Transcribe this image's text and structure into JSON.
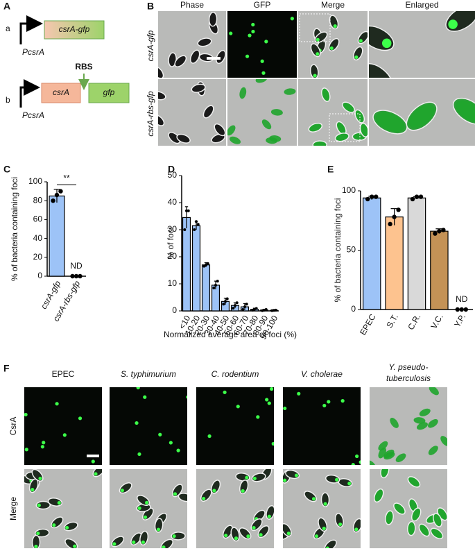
{
  "panel_labels": [
    "A",
    "B",
    "C",
    "D",
    "E",
    "F"
  ],
  "panel_a": {
    "rows": [
      {
        "label": "a",
        "boxes": [
          "csrA-gfp"
        ],
        "promoter": "PcsrA"
      },
      {
        "label": "b",
        "boxes": [
          "csrA",
          "gfp"
        ],
        "rbs": "RBS",
        "promoter": "PcsrA"
      }
    ]
  },
  "panel_b": {
    "columns": [
      "Phase",
      "GFP",
      "Merge",
      "Enlarged"
    ],
    "rows": [
      "csrA-gfp",
      "csrA-rbs-gfp"
    ]
  },
  "chart_data": [
    {
      "type": "bar",
      "ylabel": "% of bacteria containing foci",
      "categories": [
        "csrA-gfp",
        "csrA-rbs-gfp"
      ],
      "values": [
        85,
        0
      ],
      "value_labels": [
        null,
        "ND"
      ],
      "errors": [
        7,
        0
      ],
      "points": [
        [
          80,
          86,
          90
        ],
        [
          0,
          0,
          0
        ]
      ],
      "color": "#9dc3f7",
      "ylim": [
        0,
        100
      ],
      "yticks": [
        0,
        20,
        40,
        60,
        80,
        100
      ],
      "significance": "**"
    },
    {
      "type": "bar",
      "ylabel": "% of foci",
      "xlabel": "Normalized average area of foci (%)",
      "categories": [
        "<10",
        "10-20",
        "20-30",
        "30-40",
        "40-50",
        "50-60",
        "60-70",
        "70-80",
        "80-90",
        "90-100"
      ],
      "values": [
        34.5,
        31.5,
        17,
        9.5,
        3.5,
        2,
        1.5,
        0.6,
        0.3,
        0.2
      ],
      "errors": [
        4,
        1.5,
        0.8,
        1.5,
        1.2,
        1,
        1.2,
        0.4,
        0.3,
        0.2
      ],
      "points": [
        [
          30,
          37,
          37
        ],
        [
          30,
          33,
          32
        ],
        [
          16.5,
          17,
          17.5
        ],
        [
          8.5,
          9.5,
          11
        ],
        [
          2.5,
          3.5,
          4.5
        ],
        [
          1,
          2,
          3
        ],
        [
          0.5,
          1.5,
          2.5
        ],
        [
          0.3,
          0.6,
          0.9
        ],
        [
          0.1,
          0.3,
          0.5
        ],
        [
          0.1,
          0.2,
          0.3
        ]
      ],
      "color": "#9dc3f7",
      "ylim": [
        0,
        50
      ],
      "yticks": [
        0,
        10,
        20,
        30,
        40,
        50
      ]
    },
    {
      "type": "bar",
      "ylabel": "% of bacteria containing foci",
      "categories": [
        "EPEC",
        "S.T.",
        "C.R.",
        "V.C.",
        "Y.P."
      ],
      "values": [
        94,
        78,
        94,
        66,
        0
      ],
      "value_labels": [
        null,
        null,
        null,
        null,
        "ND"
      ],
      "errors": [
        1.5,
        7,
        1,
        2,
        0
      ],
      "points": [
        [
          93,
          95,
          95
        ],
        [
          72,
          78,
          84
        ],
        [
          93,
          95,
          95
        ],
        [
          64,
          66,
          67
        ],
        [
          0,
          0,
          0
        ]
      ],
      "colors": [
        "#9dc3f7",
        "#fdc38f",
        "#d9d9d9",
        "#c49256",
        "#ffffff"
      ],
      "ylim": [
        0,
        100
      ],
      "yticks": [
        0,
        50,
        100
      ]
    }
  ],
  "panel_f": {
    "columns": [
      "EPEC",
      "S. typhimurium",
      "C. rodentium",
      "V. cholerae",
      [
        "Y. pseudo-",
        "tuberculosis"
      ]
    ],
    "rows": [
      "CsrA",
      "Merge"
    ]
  }
}
